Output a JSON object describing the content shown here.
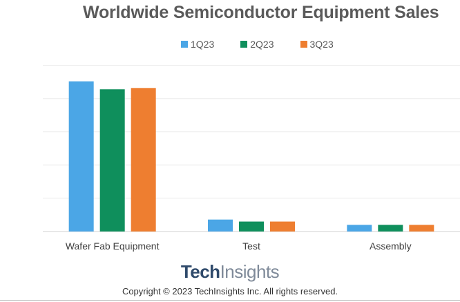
{
  "chart_data": {
    "type": "bar",
    "title": "Worldwide Semiconductor Equipment Sales",
    "categories": [
      "Wafer Fab Equipment",
      "Test",
      "Assembly"
    ],
    "series": [
      {
        "name": "1Q23",
        "values": [
          22.6,
          1.8,
          1.0
        ],
        "color": "#4ba6e6"
      },
      {
        "name": "2Q23",
        "values": [
          21.4,
          1.5,
          1.0
        ],
        "color": "#0f8f5c"
      },
      {
        "name": "3Q23",
        "values": [
          21.6,
          1.5,
          1.0
        ],
        "color": "#ee7e30"
      }
    ],
    "ylim": [
      0,
      26
    ],
    "grid": true,
    "legend": "top-center"
  },
  "branding": {
    "logo_part1": "Tech",
    "logo_part2": "Insights",
    "copyright": "Copyright © 2023 TechInsights Inc.  All rights reserved."
  }
}
